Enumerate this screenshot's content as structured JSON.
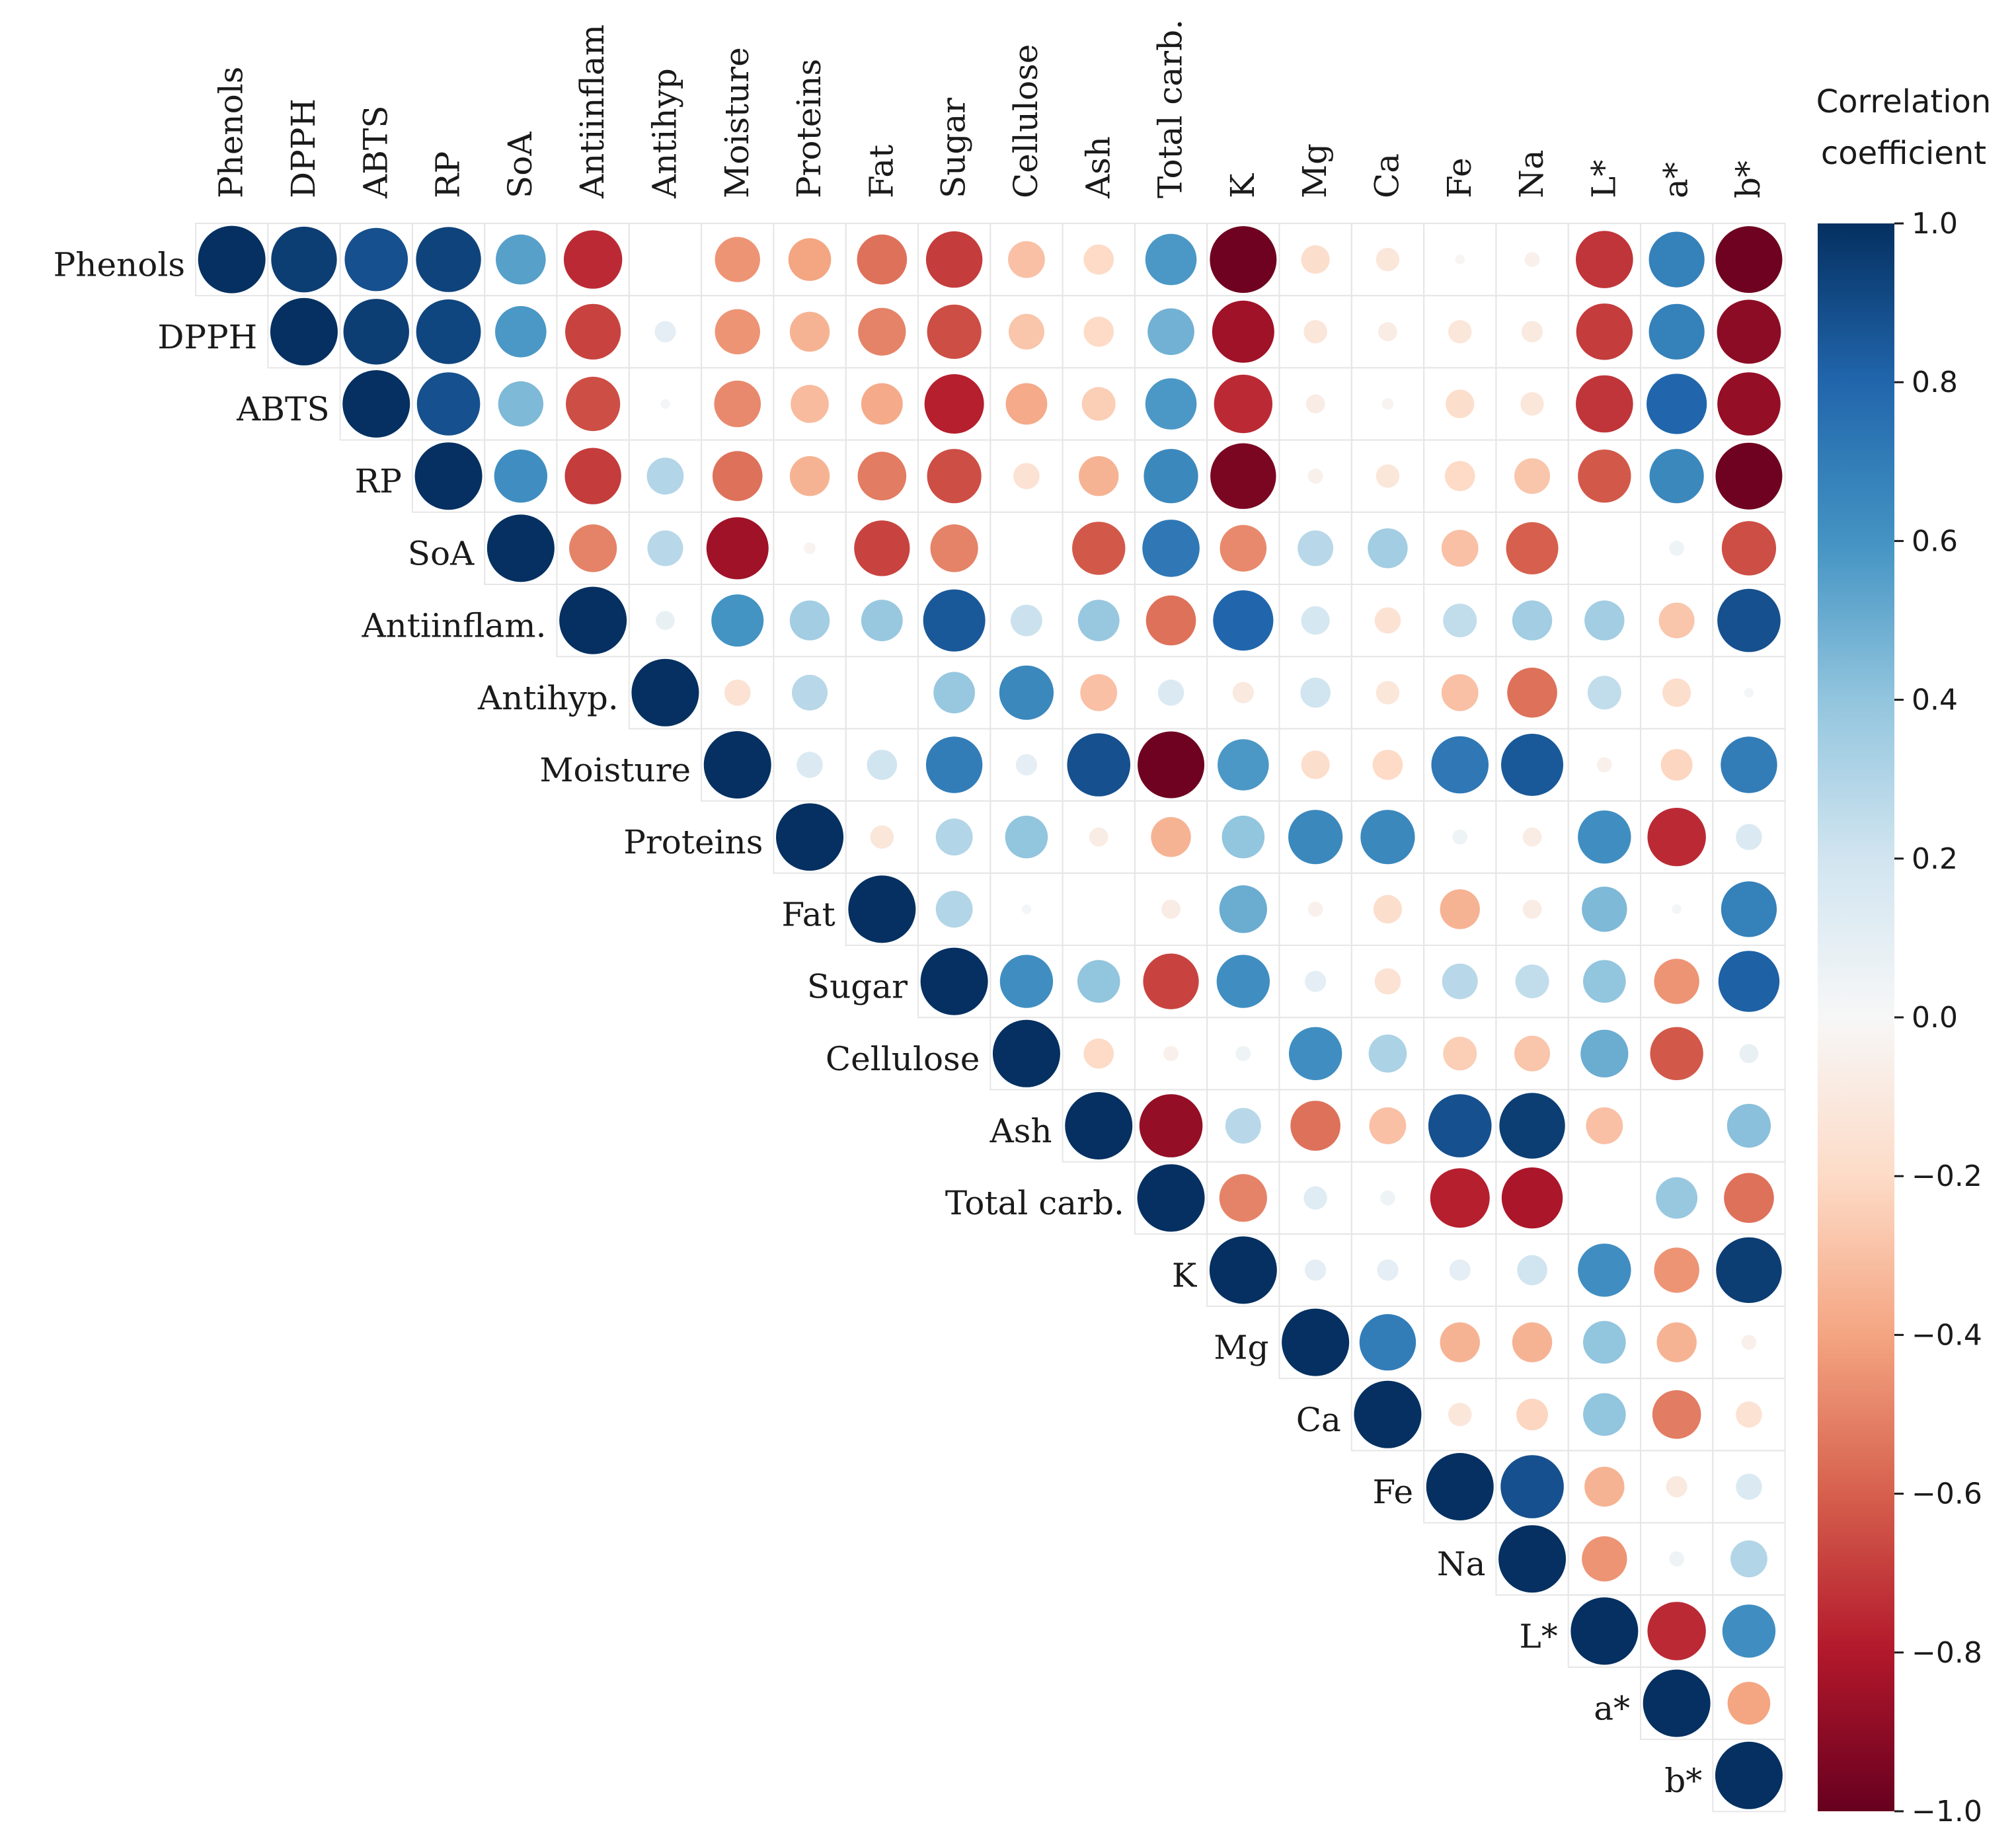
{
  "chart_data": {
    "type": "heatmap",
    "subtype": "correlation-circle-upper-triangle",
    "variables": [
      "Phenols",
      "DPPH",
      "ABTS",
      "RP",
      "SoA",
      "Antiinflam",
      "Antihyp",
      "Moisture",
      "Proteins",
      "Fat",
      "Sugar",
      "Cellulose",
      "Ash",
      "Total carb.",
      "K",
      "Mg",
      "Ca",
      "Fe",
      "Na",
      "L*",
      "a*",
      "b*"
    ],
    "column_labels": [
      "Phenols",
      "DPPH",
      "ABTS",
      "RP",
      "SoA",
      "Antiinflam",
      "Antihyp",
      "Moisture",
      "Proteins",
      "Fat",
      "Sugar",
      "Cellulose",
      "Ash",
      "Total carb.",
      "K",
      "Mg",
      "Ca",
      "Fe",
      "Na",
      "L*",
      "a*",
      "b*"
    ],
    "row_labels": [
      "Phenols",
      "DPPH",
      "ABTS",
      "RP",
      "SoA",
      "Antiinflam.",
      "Antihyp.",
      "Moisture",
      "Proteins",
      "Fat",
      "Sugar",
      "Cellulose",
      "Ash",
      "Total carb.",
      "K",
      "Mg",
      "Ca",
      "Fe",
      "Na",
      "L*",
      "a*",
      "b*"
    ],
    "upper_triangle_rows": [
      [
        1.0,
        0.95,
        0.88,
        0.93,
        0.55,
        -0.75,
        0.0,
        -0.45,
        -0.4,
        -0.55,
        -0.7,
        -0.3,
        -0.2,
        0.58,
        -0.98,
        -0.18,
        -0.12,
        -0.02,
        -0.05,
        -0.72,
        0.68,
        -0.98
      ],
      [
        1.0,
        0.95,
        0.92,
        0.58,
        -0.68,
        0.1,
        -0.45,
        -0.35,
        -0.5,
        -0.65,
        -0.28,
        -0.2,
        0.48,
        -0.85,
        -0.12,
        -0.08,
        -0.12,
        -0.1,
        -0.7,
        0.68,
        -0.9
      ],
      [
        1.0,
        0.88,
        0.45,
        -0.65,
        0.02,
        -0.48,
        -0.32,
        -0.38,
        -0.78,
        -0.38,
        -0.25,
        0.58,
        -0.75,
        -0.08,
        -0.03,
        -0.18,
        -0.12,
        -0.72,
        0.8,
        -0.88
      ],
      [
        1.0,
        0.62,
        -0.7,
        0.3,
        -0.55,
        -0.35,
        -0.52,
        -0.65,
        -0.15,
        -0.35,
        0.65,
        -0.95,
        -0.05,
        -0.12,
        -0.2,
        -0.28,
        -0.62,
        0.65,
        -0.98
      ],
      [
        1.0,
        -0.5,
        0.28,
        -0.85,
        -0.03,
        -0.68,
        -0.5,
        0.0,
        -0.62,
        0.72,
        -0.48,
        0.28,
        0.35,
        -0.3,
        -0.6,
        0.0,
        0.05,
        -0.65
      ],
      [
        1.0,
        0.08,
        0.6,
        0.35,
        0.38,
        0.85,
        0.22,
        0.38,
        -0.55,
        0.8,
        0.18,
        -0.15,
        0.25,
        0.35,
        0.35,
        -0.28,
        0.88
      ],
      [
        1.0,
        -0.15,
        0.28,
        0.0,
        0.38,
        0.65,
        -0.3,
        0.15,
        -0.1,
        0.2,
        -0.12,
        -0.3,
        -0.55,
        0.25,
        -0.18,
        0.02
      ],
      [
        1.0,
        0.15,
        0.2,
        0.7,
        0.1,
        0.88,
        -0.98,
        0.58,
        -0.18,
        -0.2,
        0.72,
        0.85,
        -0.05,
        -0.22,
        0.7
      ],
      [
        1.0,
        -0.12,
        0.3,
        0.4,
        -0.08,
        -0.35,
        0.4,
        0.65,
        0.65,
        0.05,
        -0.08,
        0.62,
        -0.75,
        0.15
      ],
      [
        1.0,
        0.3,
        0.02,
        0.0,
        -0.08,
        0.5,
        -0.05,
        -0.18,
        -0.35,
        -0.08,
        0.45,
        0.02,
        0.68
      ],
      [
        1.0,
        0.62,
        0.4,
        -0.68,
        0.62,
        0.1,
        -0.15,
        0.28,
        0.25,
        0.4,
        -0.45,
        0.82
      ],
      [
        1.0,
        -0.2,
        -0.05,
        0.05,
        0.62,
        0.32,
        -0.25,
        -0.28,
        0.5,
        -0.62,
        0.08
      ],
      [
        1.0,
        -0.88,
        0.28,
        -0.55,
        -0.3,
        0.88,
        0.95,
        -0.3,
        0.0,
        0.42
      ],
      [
        1.0,
        -0.5,
        0.12,
        0.05,
        -0.78,
        -0.82,
        0.0,
        0.38,
        -0.55
      ],
      [
        1.0,
        0.1,
        0.1,
        0.1,
        0.2,
        0.62,
        -0.45,
        0.95
      ],
      [
        1.0,
        0.7,
        -0.35,
        -0.35,
        0.4,
        -0.35,
        -0.05
      ],
      [
        1.0,
        -0.12,
        -0.22,
        0.4,
        -0.52,
        -0.15
      ],
      [
        1.0,
        0.88,
        -0.35,
        -0.1,
        0.15
      ],
      [
        1.0,
        -0.45,
        0.05,
        0.3
      ],
      [
        1.0,
        -0.75,
        0.62
      ],
      [
        1.0,
        -0.4
      ],
      [
        1.0
      ]
    ],
    "colorbar": {
      "title_line1": "Correlation",
      "title_line2": "coefficient",
      "range": [
        -1.0,
        1.0
      ],
      "ticks": [
        1.0,
        0.8,
        0.6,
        0.4,
        0.2,
        0.0,
        -0.2,
        -0.4,
        -0.6,
        -0.8,
        -1.0
      ],
      "tick_labels": [
        "1.0",
        "0.8",
        "0.6",
        "0.4",
        "0.2",
        "0.0",
        "−0.2",
        "−0.4",
        "−0.6",
        "−0.8",
        "−1.0"
      ],
      "colormap": "RdBu",
      "color_stops": [
        "#67001f",
        "#b2182b",
        "#d6604d",
        "#f4a582",
        "#fddbc7",
        "#f7f7f7",
        "#d1e5f0",
        "#92c5de",
        "#4393c3",
        "#2166ac",
        "#053061"
      ]
    },
    "grid_color": "#e6e6e6",
    "legend_position": "right"
  }
}
